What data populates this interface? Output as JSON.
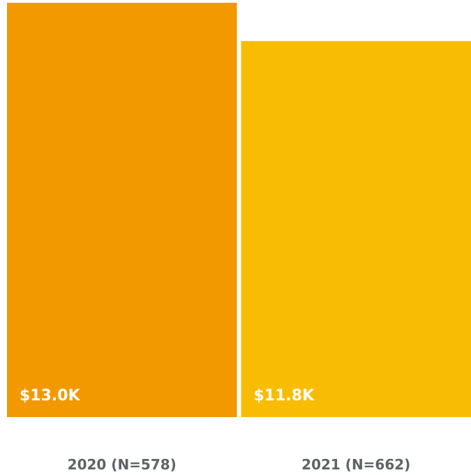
{
  "chart_data": {
    "type": "bar",
    "categories": [
      "2020 (N=578)",
      "2021 (N=662)"
    ],
    "values": [
      13.0,
      11.8
    ],
    "value_labels": [
      "$13.0K",
      "$11.8K"
    ],
    "bar_colors": [
      "#F29900",
      "#F9BC05"
    ],
    "value_label_color": "#FFFFFF",
    "category_label_color": "#5F6368",
    "title": "",
    "xlabel": "",
    "ylabel": "",
    "ylim": [
      0,
      13.0
    ],
    "grid": false
  }
}
